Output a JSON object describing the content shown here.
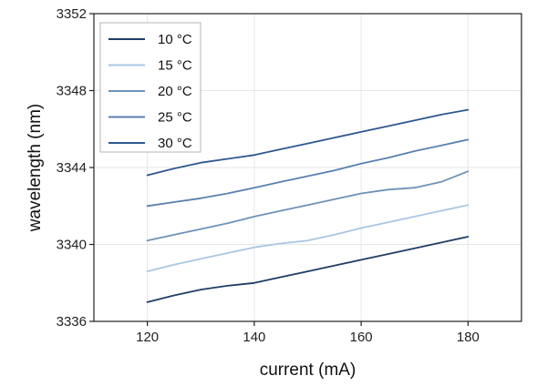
{
  "chart_data": {
    "type": "line",
    "title": "",
    "xlabel": "current (mA)",
    "ylabel": "wavelength (nm)",
    "xlim": [
      110,
      190
    ],
    "ylim": [
      3336,
      3352
    ],
    "xticks": [
      120,
      140,
      160,
      180
    ],
    "yticks": [
      3336,
      3340,
      3344,
      3348,
      3352
    ],
    "grid": true,
    "legend_position": "top-left",
    "series": [
      {
        "name": "10 °C",
        "color": "#1f3d66",
        "x": [
          120,
          125,
          130,
          135,
          140,
          145,
          150,
          155,
          160,
          165,
          170,
          175,
          180
        ],
        "y": [
          3337.0,
          3337.35,
          3337.65,
          3337.85,
          3338.0,
          3338.3,
          3338.6,
          3338.9,
          3339.2,
          3339.5,
          3339.8,
          3340.1,
          3340.4
        ]
      },
      {
        "name": "15 °C",
        "color": "#a9c6e3",
        "x": [
          120,
          125,
          130,
          135,
          140,
          145,
          150,
          155,
          160,
          165,
          170,
          175,
          180
        ],
        "y": [
          3338.6,
          3338.95,
          3339.25,
          3339.55,
          3339.85,
          3340.05,
          3340.2,
          3340.5,
          3340.85,
          3341.15,
          3341.45,
          3341.75,
          3342.05
        ]
      },
      {
        "name": "20 °C",
        "color": "#6f92b8",
        "x": [
          120,
          125,
          130,
          135,
          140,
          145,
          150,
          155,
          160,
          165,
          170,
          175,
          180
        ],
        "y": [
          3340.2,
          3340.5,
          3340.8,
          3341.1,
          3341.45,
          3341.75,
          3342.05,
          3342.35,
          3342.65,
          3342.85,
          3342.95,
          3343.25,
          3343.8
        ]
      },
      {
        "name": "25 °C",
        "color": "#5a80b0",
        "x": [
          120,
          125,
          130,
          135,
          140,
          145,
          150,
          155,
          160,
          165,
          170,
          175,
          180
        ],
        "y": [
          3342.0,
          3342.2,
          3342.4,
          3342.65,
          3342.95,
          3343.25,
          3343.55,
          3343.85,
          3344.2,
          3344.5,
          3344.85,
          3345.15,
          3345.45
        ]
      },
      {
        "name": "30 °C",
        "color": "#2f5790",
        "x": [
          120,
          125,
          130,
          135,
          140,
          145,
          150,
          155,
          160,
          165,
          170,
          175,
          180
        ],
        "y": [
          3343.6,
          3343.95,
          3344.25,
          3344.45,
          3344.65,
          3344.95,
          3345.25,
          3345.55,
          3345.85,
          3346.15,
          3346.45,
          3346.75,
          3347.0
        ]
      }
    ]
  }
}
